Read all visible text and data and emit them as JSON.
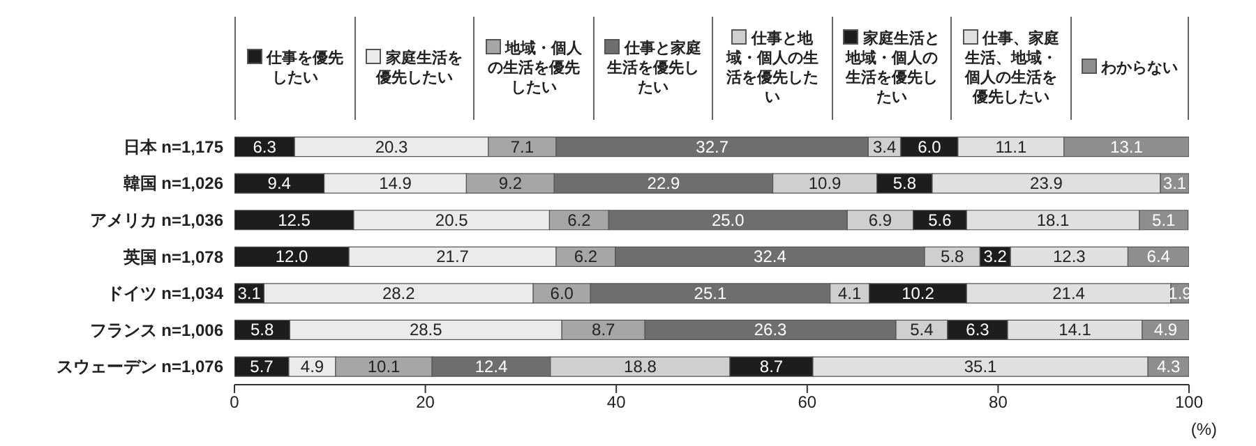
{
  "chart_data": {
    "type": "bar",
    "orientation": "horizontal",
    "stacked": true,
    "legend": "top",
    "xlabel": "(%)",
    "categories": [
      "日本 n=1,175",
      "韓国 n=1,026",
      "アメリカ n=1,036",
      "英国 n=1,078",
      "ドイツ n=1,034",
      "フランス n=1,006",
      "スウェーデン n=1,076"
    ],
    "xlim": [
      0,
      100
    ],
    "xticks": [
      0,
      20,
      40,
      60,
      80,
      100
    ],
    "series": [
      {
        "name": "仕事を優先したい",
        "color": "#1e1b1c",
        "values": [
          6.3,
          9.4,
          12.5,
          12.0,
          3.1,
          5.8,
          5.7
        ],
        "value_labels": [
          "6.3",
          "9.4",
          "12.5",
          "12.0",
          "3.1",
          "5.8",
          "5.7"
        ]
      },
      {
        "name": "家庭生活を優先したい",
        "color": "#ebebeb",
        "values": [
          20.3,
          14.9,
          20.5,
          21.7,
          28.2,
          28.5,
          4.9
        ],
        "value_labels": [
          "20.3",
          "14.9",
          "20.5",
          "21.7",
          "28.2",
          "28.5",
          "4.9"
        ]
      },
      {
        "name": "地域・個人の生活を優先したい",
        "color": "#a6a6a6",
        "values": [
          7.1,
          9.2,
          6.2,
          6.2,
          6.0,
          8.7,
          10.1
        ],
        "value_labels": [
          "7.1",
          "9.2",
          "6.2",
          "6.2",
          "6.0",
          "8.7",
          "10.1"
        ]
      },
      {
        "name": "仕事と家庭生活を優先したい",
        "color": "#6d6e70",
        "values": [
          32.7,
          22.9,
          25.0,
          32.4,
          25.1,
          26.3,
          12.4
        ],
        "value_labels": [
          "32.7",
          "22.9",
          "25.0",
          "32.4",
          "25.1",
          "26.3",
          "12.4"
        ]
      },
      {
        "name": "仕事と地域・個人の生活を優先したい",
        "color": "#cfcfcf",
        "values": [
          3.4,
          10.9,
          6.9,
          5.8,
          4.1,
          5.4,
          18.8
        ],
        "value_labels": [
          "3.4",
          "10.9",
          "6.9",
          "5.8",
          "4.1",
          "5.4",
          "18.8"
        ]
      },
      {
        "name": "家庭生活と地域・個人の生活を優先したい",
        "color": "#1f1c1d",
        "values": [
          6.0,
          5.8,
          5.6,
          3.2,
          10.2,
          6.3,
          8.7
        ],
        "value_labels": [
          "6.0",
          "5.8",
          "5.6",
          "3.2",
          "10.2",
          "6.3",
          "8.7"
        ]
      },
      {
        "name": "仕事、家庭生活、地域・個人の生活を優先したい",
        "color": "#e0e0e0",
        "values": [
          11.1,
          23.9,
          18.1,
          12.3,
          21.4,
          14.1,
          35.1
        ],
        "value_labels": [
          "11.1",
          "23.9",
          "18.1",
          "12.3",
          "21.4",
          "14.1",
          "35.1"
        ]
      },
      {
        "name": "わからない",
        "color": "#8e8e8e",
        "values": [
          13.1,
          3.1,
          5.1,
          6.4,
          1.9,
          4.9,
          4.3
        ],
        "value_labels": [
          "13.1",
          "3.1",
          "5.1",
          "6.4",
          "1.9",
          "4.9",
          "4.3"
        ]
      }
    ]
  }
}
